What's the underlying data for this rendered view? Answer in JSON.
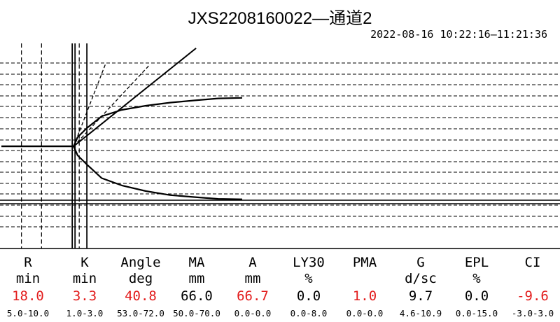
{
  "title": "JXS2208160022—通道2",
  "time_range": "2022-08-16 10:22:16—11:21:36",
  "colors": {
    "line": "#000000",
    "abnormal": "#e21b1b",
    "normal": "#000000"
  },
  "parameters": [
    {
      "label": "R",
      "unit": "min",
      "value": "18.0",
      "range": "5.0-10.0",
      "status": "abnormal"
    },
    {
      "label": "K",
      "unit": "min",
      "value": "3.3",
      "range": "1.0-3.0",
      "status": "abnormal"
    },
    {
      "label": "Angle",
      "unit": "deg",
      "value": "40.8",
      "range": "53.0-72.0",
      "status": "abnormal"
    },
    {
      "label": "MA",
      "unit": "mm",
      "value": "66.0",
      "range": "50.0-70.0",
      "status": "normal"
    },
    {
      "label": "A",
      "unit": "mm",
      "value": "66.7",
      "range": "0.0-0.0",
      "status": "abnormal"
    },
    {
      "label": "LY30",
      "unit": "%",
      "value": "0.0",
      "range": "0.0-8.0",
      "status": "normal"
    },
    {
      "label": "PMA",
      "unit": "",
      "value": "1.0",
      "range": "0.0-0.0",
      "status": "abnormal"
    },
    {
      "label": "G",
      "unit": "d/sc",
      "value": "9.7",
      "range": "4.6-10.9",
      "status": "normal"
    },
    {
      "label": "EPL",
      "unit": "%",
      "value": "0.0",
      "range": "0.0-15.0",
      "status": "normal"
    },
    {
      "label": "CI",
      "unit": "",
      "value": "-9.6",
      "range": "-3.0-3.0",
      "status": "abnormal"
    }
  ],
  "chart_data": {
    "type": "line",
    "title": "JXS2208160022—通道2",
    "x_unit": "min",
    "xlim": [
      0,
      60
    ],
    "ylim": [
      -40,
      40
    ],
    "grid": "horizontal dashed",
    "markers": {
      "R_min": 18.0,
      "K_end_min": 21.3,
      "normal_R_range_min": [
        5.0,
        10.0
      ]
    },
    "series": [
      {
        "x": [
          0,
          18.0,
          19.0,
          21.3,
          25,
          30,
          36,
          42,
          48,
          54,
          60
        ],
        "y": [
          0,
          0,
          5.0,
          10.0,
          16.5,
          20.0,
          22.3,
          24.0,
          25.2,
          26.3,
          26.6
        ]
      },
      {
        "x": [
          0,
          18.0,
          19.0,
          21.3,
          25,
          30,
          36,
          42,
          48,
          54,
          60
        ],
        "y": [
          0,
          0,
          -5.0,
          -10.0,
          -17.5,
          -21.5,
          -24.6,
          -26.8,
          -27.9,
          -28.9,
          -29.1
        ]
      },
      {
        "x": [
          18.0,
          48.5
        ],
        "y": [
          0,
          53.9
        ]
      },
      {
        "x": [
          18.0,
          26.0
        ],
        "y": [
          0,
          45.6
        ]
      },
      {
        "x": [
          18.0,
          37.0
        ],
        "y": [
          0,
          44.9
        ]
      }
    ]
  }
}
